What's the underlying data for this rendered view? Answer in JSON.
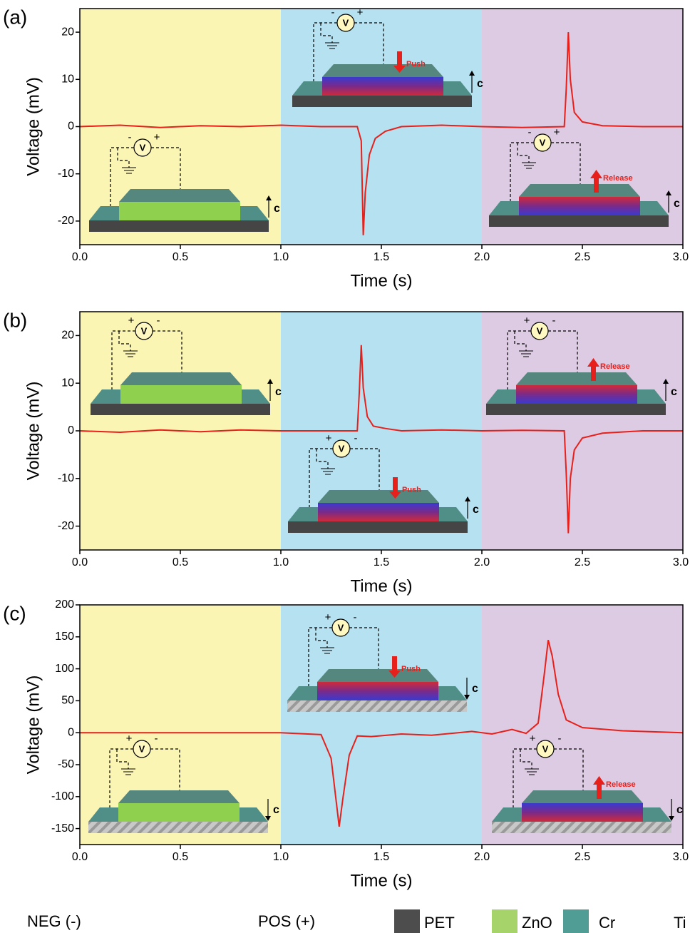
{
  "chart_data": [
    {
      "type": "line",
      "panel_label": "(a)",
      "xlabel": "Time (s)",
      "ylabel": "Voltage (mV)",
      "x": [
        0,
        0.2,
        0.4,
        0.6,
        0.8,
        1.0,
        1.2,
        1.38,
        1.4,
        1.41,
        1.42,
        1.44,
        1.47,
        1.52,
        1.6,
        1.8,
        2.0,
        2.2,
        2.41,
        2.42,
        2.43,
        2.44,
        2.46,
        2.5,
        2.6,
        2.8,
        3.0
      ],
      "values": [
        0,
        0.3,
        -0.2,
        0.2,
        0,
        0.3,
        0,
        0,
        -3,
        -23,
        -14,
        -6,
        -2.5,
        -1,
        0,
        0.3,
        0,
        -0.2,
        0,
        8,
        20,
        10,
        3,
        1,
        0.2,
        0,
        0
      ],
      "color": "#e8201c",
      "xlim": [
        0,
        3
      ],
      "ylim": [
        -25,
        25
      ],
      "xticks": [
        {
          "value": 0,
          "label": "0.0"
        },
        {
          "value": 0.5,
          "label": "0.5"
        },
        {
          "value": 1,
          "label": "1.0"
        },
        {
          "value": 1.5,
          "label": "1.5"
        },
        {
          "value": 2,
          "label": "2.0"
        },
        {
          "value": 2.5,
          "label": "2.5"
        },
        {
          "value": 3,
          "label": "3.0"
        }
      ],
      "yticks": [
        -20,
        -10,
        0,
        10,
        20
      ],
      "band_colors": [
        "#fbf5b4",
        "#b6e1f0",
        "#dccbe2"
      ],
      "insets": [
        {
          "meter": "V",
          "left_sign": "-",
          "right_sign": "+",
          "axis_label": "c"
        },
        {
          "meter": "V",
          "left_sign": "-",
          "right_sign": "+",
          "action": "Push",
          "axis_label": "c"
        },
        {
          "meter": "V",
          "left_sign": "-",
          "right_sign": "+",
          "action": "Release",
          "axis_label": "c"
        }
      ]
    },
    {
      "type": "line",
      "panel_label": "(b)",
      "xlabel": "Time (s)",
      "ylabel": "Voltage (mV)",
      "x": [
        0,
        0.2,
        0.4,
        0.6,
        0.8,
        1.0,
        1.2,
        1.38,
        1.39,
        1.4,
        1.41,
        1.43,
        1.46,
        1.52,
        1.6,
        1.8,
        2.0,
        2.2,
        2.41,
        2.42,
        2.43,
        2.44,
        2.46,
        2.5,
        2.6,
        2.8,
        3.0
      ],
      "values": [
        0,
        -0.3,
        0.2,
        -0.2,
        0.2,
        0,
        0,
        0,
        8,
        18,
        9,
        3,
        1,
        0.5,
        0,
        0.2,
        0,
        0.1,
        0,
        -9,
        -21.5,
        -10,
        -4,
        -1.5,
        -0.5,
        0,
        0
      ],
      "color": "#e8201c",
      "xlim": [
        0,
        3
      ],
      "ylim": [
        -25,
        25
      ],
      "xticks": [
        {
          "value": 0,
          "label": "0.0"
        },
        {
          "value": 0.5,
          "label": "0.5"
        },
        {
          "value": 1,
          "label": "1.0"
        },
        {
          "value": 1.5,
          "label": "1.5"
        },
        {
          "value": 2,
          "label": "2.0"
        },
        {
          "value": 2.5,
          "label": "2.5"
        },
        {
          "value": 3,
          "label": "3.0"
        }
      ],
      "yticks": [
        -20,
        -10,
        0,
        10,
        20
      ],
      "band_colors": [
        "#fbf5b4",
        "#b6e1f0",
        "#dccbe2"
      ],
      "insets": [
        {
          "meter": "V",
          "left_sign": "+",
          "right_sign": "-",
          "axis_label": "c"
        },
        {
          "meter": "V",
          "left_sign": "+",
          "right_sign": "-",
          "action": "Push",
          "axis_label": "c"
        },
        {
          "meter": "V",
          "left_sign": "+",
          "right_sign": "-",
          "action": "Release",
          "axis_label": "c"
        }
      ]
    },
    {
      "type": "line",
      "panel_label": "(c)",
      "xlabel": "Time (s)",
      "ylabel": "Voltage (mV)",
      "x": [
        0,
        0.5,
        1.0,
        1.2,
        1.25,
        1.28,
        1.29,
        1.31,
        1.34,
        1.38,
        1.45,
        1.6,
        1.75,
        1.95,
        2.05,
        2.15,
        2.22,
        2.28,
        2.31,
        2.33,
        2.35,
        2.38,
        2.42,
        2.5,
        2.7,
        3.0
      ],
      "values": [
        0,
        0,
        0,
        -3,
        -40,
        -120,
        -147,
        -100,
        -35,
        -5,
        -6,
        -2,
        -4,
        2,
        -2,
        5,
        -1,
        15,
        90,
        145,
        120,
        60,
        20,
        8,
        3,
        0
      ],
      "color": "#e8201c",
      "xlim": [
        0,
        3
      ],
      "ylim": [
        -175,
        200
      ],
      "xticks": [
        {
          "value": 0,
          "label": "0.0"
        },
        {
          "value": 0.5,
          "label": "0.5"
        },
        {
          "value": 1,
          "label": "1.0"
        },
        {
          "value": 1.5,
          "label": "1.5"
        },
        {
          "value": 2,
          "label": "2.0"
        },
        {
          "value": 2.5,
          "label": "2.5"
        },
        {
          "value": 3,
          "label": "3.0"
        }
      ],
      "yticks": [
        -150,
        -100,
        -50,
        0,
        50,
        100,
        150,
        200
      ],
      "band_colors": [
        "#fbf5b4",
        "#b6e1f0",
        "#dccbe2"
      ],
      "insets": [
        {
          "meter": "V",
          "left_sign": "+",
          "right_sign": "-",
          "axis_label": "c"
        },
        {
          "meter": "V",
          "left_sign": "+",
          "right_sign": "-",
          "action": "Push",
          "axis_label": "c"
        },
        {
          "meter": "V",
          "left_sign": "+",
          "right_sign": "-",
          "action": "Release",
          "axis_label": "c"
        }
      ]
    }
  ],
  "legend": {
    "labels": [
      "NEG (-)",
      "POS (+)"
    ],
    "items": [
      {
        "name": "PET",
        "color": "#4d4d4d"
      },
      {
        "name": "ZnO",
        "color": "#a6d46a"
      },
      {
        "name": "Cr",
        "color": "#4f9d95"
      },
      {
        "name": "Ti"
      }
    ]
  }
}
